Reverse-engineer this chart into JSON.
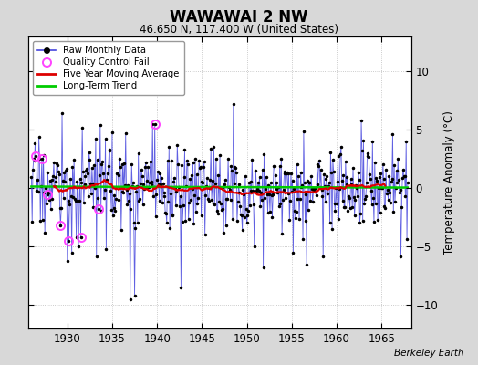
{
  "title": "WAWAWAI 2 NW",
  "subtitle": "46.650 N, 117.400 W (United States)",
  "ylabel": "Temperature Anomaly (°C)",
  "credit": "Berkeley Earth",
  "start_year": 1926,
  "end_year": 1967,
  "ylim": [
    -12,
    13
  ],
  "yticks": [
    -10,
    -5,
    0,
    5,
    10
  ],
  "bg_color": "#d8d8d8",
  "plot_bg_color": "#ffffff",
  "raw_line_color": "#4444dd",
  "raw_marker_color": "#000000",
  "ma_color": "#dd0000",
  "trend_color": "#00cc00",
  "qc_color": "#ff44ff",
  "grid_color": "#bbbbbb",
  "legend_labels": [
    "Raw Monthly Data",
    "Quality Control Fail",
    "Five Year Moving Average",
    "Long-Term Trend"
  ],
  "seed": 17,
  "figsize": [
    5.24,
    4.0
  ],
  "dpi": 100
}
